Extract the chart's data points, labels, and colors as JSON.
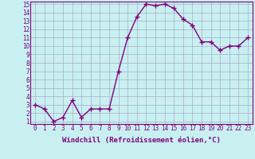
{
  "x": [
    0,
    1,
    2,
    3,
    4,
    5,
    6,
    7,
    8,
    9,
    10,
    11,
    12,
    13,
    14,
    15,
    16,
    17,
    18,
    19,
    20,
    21,
    22,
    23
  ],
  "y": [
    3,
    2.5,
    1,
    1.5,
    3.5,
    1.5,
    2.5,
    2.5,
    2.5,
    7,
    11,
    13.5,
    15,
    14.8,
    15,
    14.5,
    13.2,
    12.5,
    10.5,
    10.5,
    9.5,
    10,
    10,
    11
  ],
  "line_color": "#800080",
  "marker": "+",
  "marker_size": 4,
  "bg_color": "#c8f0f0",
  "grid_color": "#aaaacc",
  "xlabel": "Windchill (Refroidissement éolien,°C)",
  "ylim": [
    1,
    15
  ],
  "xlim": [
    0,
    23
  ],
  "yticks": [
    1,
    2,
    3,
    4,
    5,
    6,
    7,
    8,
    9,
    10,
    11,
    12,
    13,
    14,
    15
  ],
  "xticks": [
    0,
    1,
    2,
    3,
    4,
    5,
    6,
    7,
    8,
    9,
    10,
    11,
    12,
    13,
    14,
    15,
    16,
    17,
    18,
    19,
    20,
    21,
    22,
    23
  ],
  "xlabel_fontsize": 6.5,
  "tick_fontsize": 5.5,
  "line_width": 1.0,
  "marker_color": "#800080"
}
